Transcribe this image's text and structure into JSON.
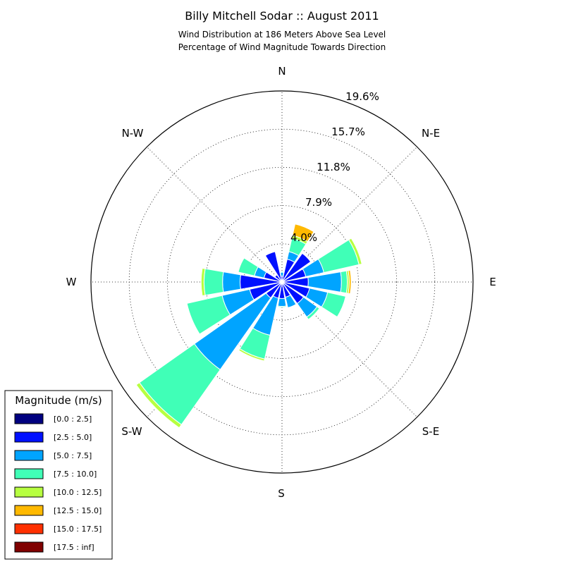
{
  "chart_data": {
    "type": "windrose",
    "title": "Billy Mitchell Sodar :: August 2011",
    "subtitle_lines": [
      "Wind Distribution at 186 Meters Above Sea Level",
      "Percentage of Wind Magnitude Towards Direction"
    ],
    "directions": [
      "N",
      "N-E",
      "E",
      "S-E",
      "S",
      "S-W",
      "W",
      "N-W"
    ],
    "ring_labels": [
      "4.0%",
      "7.9%",
      "11.8%",
      "15.7%",
      "19.6%"
    ],
    "rmax": 19.6,
    "grid": true,
    "legend": {
      "title": "Magnitude (m/s)",
      "placement": "bottom-left",
      "bins": [
        {
          "label": "[0.0 : 2.5]",
          "color": "#000080"
        },
        {
          "label": "[2.5 : 5.0]",
          "color": "#0010ff"
        },
        {
          "label": "[5.0 : 7.5]",
          "color": "#00a4ff"
        },
        {
          "label": "[7.5 : 10.0]",
          "color": "#40ffb7"
        },
        {
          "label": "[10.0 : 12.5]",
          "color": "#b7ff40"
        },
        {
          "label": "[12.5 : 15.0]",
          "color": "#ffb900"
        },
        {
          "label": "[15.0 : 17.5]",
          "color": "#ff3000"
        },
        {
          "label": "[17.5 : inf]",
          "color": "#800000"
        }
      ]
    },
    "sectors": [
      {
        "dir_deg": 0,
        "cumulative": [
          0.2,
          0.6,
          1.0,
          1.1
        ]
      },
      {
        "dir_deg": 22.5,
        "cumulative": [
          0.2,
          2.4,
          3.2,
          4.6,
          4.9,
          6.1
        ]
      },
      {
        "dir_deg": 45,
        "cumulative": [
          0.2,
          3.6
        ]
      },
      {
        "dir_deg": 67.5,
        "cumulative": [
          0.2,
          2.5,
          4.4,
          8.1,
          8.4
        ]
      },
      {
        "dir_deg": 90,
        "cumulative": [
          0.2,
          2.7,
          6.1,
          6.7,
          6.9,
          7.1
        ]
      },
      {
        "dir_deg": 112.5,
        "cumulative": [
          0.2,
          2.9,
          4.8,
          6.7
        ]
      },
      {
        "dir_deg": 135,
        "cumulative": [
          0.2,
          2.7,
          4.4,
          4.7
        ]
      },
      {
        "dir_deg": 157.5,
        "cumulative": [
          0.2,
          1.6,
          2.7
        ]
      },
      {
        "dir_deg": 180,
        "cumulative": [
          0.2,
          1.7,
          2.5,
          2.6
        ]
      },
      {
        "dir_deg": 202.5,
        "cumulative": [
          0.2,
          1.7,
          5.6,
          8.1,
          8.3
        ]
      },
      {
        "dir_deg": 225,
        "cumulative": [
          0.2,
          2.0,
          11.0,
          17.9,
          18.3
        ]
      },
      {
        "dir_deg": 247.5,
        "cumulative": [
          0.2,
          3.4,
          6.3,
          10.0
        ]
      },
      {
        "dir_deg": 270,
        "cumulative": [
          0.2,
          4.3,
          6.1,
          8.0,
          8.3
        ]
      },
      {
        "dir_deg": 292.5,
        "cumulative": [
          0.2,
          1.9,
          2.9,
          4.6
        ]
      },
      {
        "dir_deg": 315,
        "cumulative": [
          0.2,
          0.9
        ]
      },
      {
        "dir_deg": 337.5,
        "cumulative": [
          0.2,
          3.2
        ]
      }
    ]
  }
}
